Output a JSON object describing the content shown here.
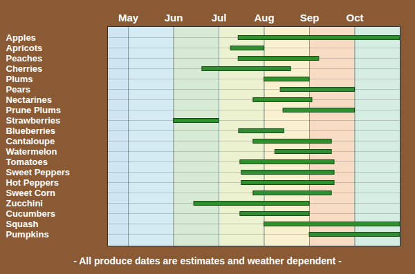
{
  "chart_data": {
    "type": "bar",
    "orientation": "horizontal",
    "caption": "- All produce dates are estimates and weather dependent -",
    "categories": [
      "Apples",
      "Apricots",
      "Peaches",
      "Cherries",
      "Plums",
      "Pears",
      "Nectarines",
      "Prune Plums",
      "Strawberries",
      "Blueberries",
      "Cantaloupe",
      "Watermelon",
      "Tomatoes",
      "Sweet Peppers",
      "Hot Peppers",
      "Sweet Corn",
      "Zucchini",
      "Cucumbers",
      "Squash",
      "Pumpkins"
    ],
    "start": [
      7.43,
      7.26,
      7.43,
      6.63,
      8.0,
      8.36,
      7.76,
      8.42,
      6.0,
      7.44,
      7.76,
      8.24,
      7.47,
      7.5,
      7.5,
      7.76,
      6.45,
      7.47,
      8.0,
      9.0
    ],
    "end": [
      11.0,
      8.0,
      9.21,
      8.59,
      9.0,
      10.0,
      9.06,
      10.0,
      7.0,
      8.44,
      9.49,
      9.49,
      9.55,
      9.55,
      9.55,
      9.49,
      9.0,
      9.0,
      11.0,
      11.0
    ],
    "color": "#2f8f2f",
    "xlim": [
      4.54,
      11.0
    ],
    "xticks": [
      {
        "value": 5,
        "label": "May"
      },
      {
        "value": 6,
        "label": "Jun"
      },
      {
        "value": 7,
        "label": "Jul"
      },
      {
        "value": 8,
        "label": "Aug"
      },
      {
        "value": 9,
        "label": "Sep"
      },
      {
        "value": 10,
        "label": "Oct"
      }
    ],
    "grid": true
  }
}
